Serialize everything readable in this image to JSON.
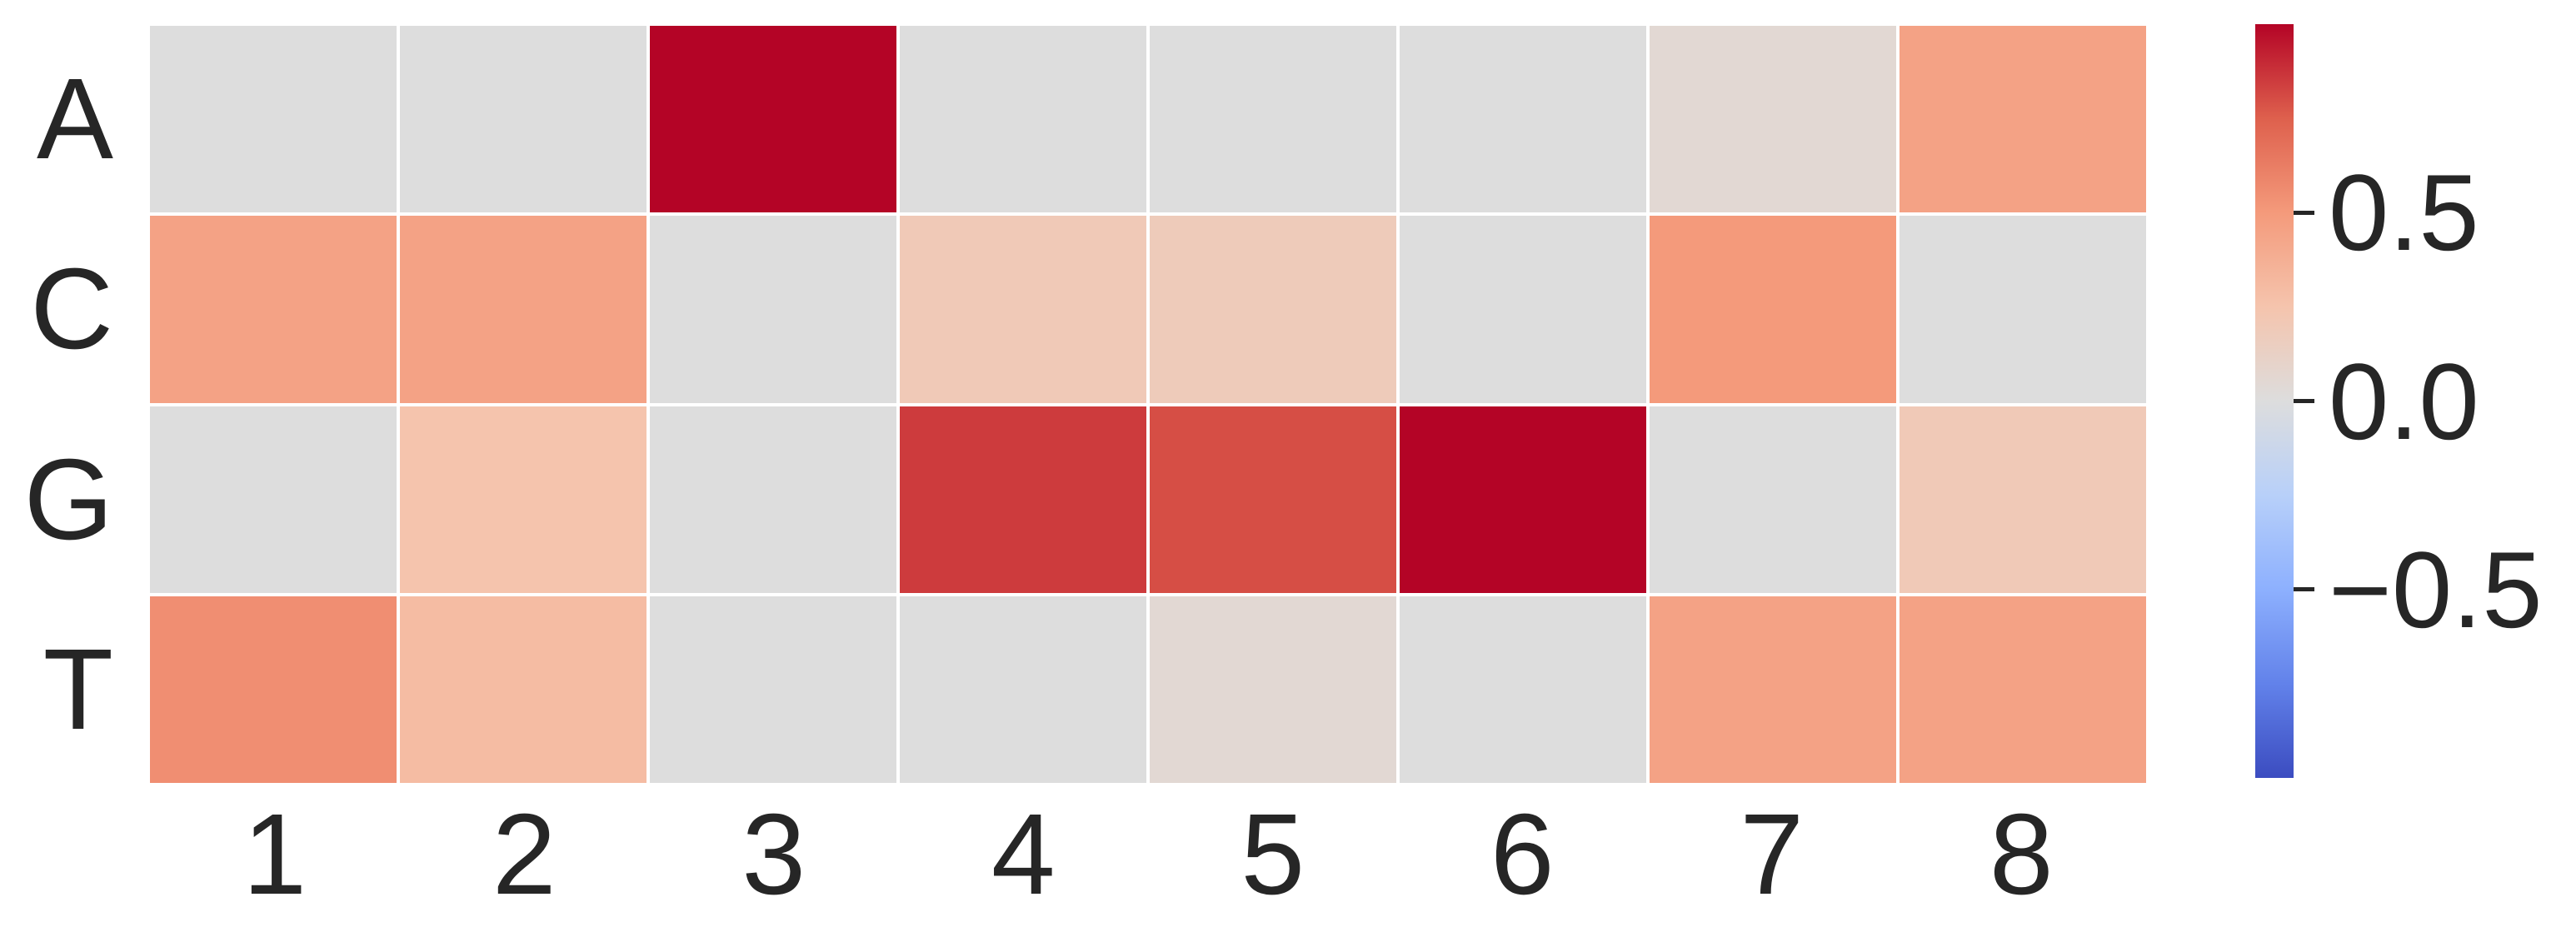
{
  "chart_data": {
    "type": "heatmap",
    "title": "",
    "xlabel": "",
    "ylabel": "",
    "rows": [
      "A",
      "C",
      "G",
      "T"
    ],
    "columns": [
      "1",
      "2",
      "3",
      "4",
      "5",
      "6",
      "7",
      "8"
    ],
    "values": [
      [
        0.0,
        0.0,
        1.0,
        0.0,
        0.0,
        0.0,
        0.05,
        0.45
      ],
      [
        0.45,
        0.45,
        0.0,
        0.2,
        0.18,
        0.0,
        0.5,
        0.0
      ],
      [
        0.0,
        0.25,
        0.0,
        0.85,
        0.8,
        1.0,
        0.0,
        0.2
      ],
      [
        0.55,
        0.3,
        0.0,
        0.0,
        0.05,
        0.0,
        0.45,
        0.45
      ]
    ],
    "vmin": -1.0,
    "vmax": 1.0,
    "colormap": "coolwarm",
    "colormap_anchors": [
      "#3b4cc0",
      "#6282ea",
      "#8db0fe",
      "#b8d0f9",
      "#dddddd",
      "#f5c4ad",
      "#f49a7b",
      "#de604d",
      "#b40426"
    ],
    "grid_line_color": "#ffffff",
    "background_color": "#ffffff",
    "text_color": "#262626",
    "colorbar": {
      "position": "right",
      "ticks": [
        0.5,
        0.0,
        -0.5
      ],
      "tick_labels": [
        "0.5",
        "0.0",
        "−0.5"
      ]
    }
  }
}
